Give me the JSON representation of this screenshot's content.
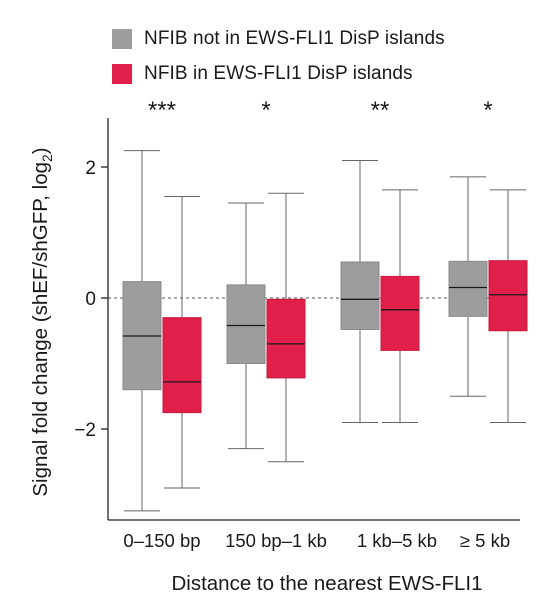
{
  "chart_data": {
    "type": "box",
    "legend_position": "top-left",
    "ylabel_main": "Signal fold change (shEF/shGFP, log",
    "ylabel_sub": "2",
    "ylabel_close": ")",
    "xlabel": "Distance to the nearest EWS-FLI1",
    "yticks": [
      2,
      0,
      -2
    ],
    "ylim": [
      -3.4,
      2.8
    ],
    "reference_line": 0,
    "categories": [
      "0–150 bp",
      "150 bp–1 kb",
      "1 kb–5 kb",
      "≥ 5 kb"
    ],
    "significance": [
      "***",
      "*",
      "**",
      "*"
    ],
    "series": [
      {
        "name": "NFIB not in EWS-FLI1 DisP islands",
        "color": "#9d9d9d",
        "boxes": [
          {
            "whisker_low": -3.25,
            "q1": -1.4,
            "median": -0.58,
            "q3": 0.25,
            "whisker_high": 2.25
          },
          {
            "whisker_low": -2.3,
            "q1": -1.0,
            "median": -0.42,
            "q3": 0.2,
            "whisker_high": 1.45
          },
          {
            "whisker_low": -1.9,
            "q1": -0.48,
            "median": -0.02,
            "q3": 0.55,
            "whisker_high": 2.1
          },
          {
            "whisker_low": -1.5,
            "q1": -0.28,
            "median": 0.16,
            "q3": 0.56,
            "whisker_high": 1.85
          }
        ]
      },
      {
        "name": "NFIB in EWS-FLI1 DisP islands",
        "color": "#e0204a",
        "boxes": [
          {
            "whisker_low": -2.9,
            "q1": -1.75,
            "median": -1.28,
            "q3": -0.3,
            "whisker_high": 1.55
          },
          {
            "whisker_low": -2.5,
            "q1": -1.22,
            "median": -0.7,
            "q3": -0.02,
            "whisker_high": 1.6
          },
          {
            "whisker_low": -1.9,
            "q1": -0.8,
            "median": -0.18,
            "q3": 0.33,
            "whisker_high": 1.65
          },
          {
            "whisker_low": -1.9,
            "q1": -0.5,
            "median": 0.05,
            "q3": 0.57,
            "whisker_high": 1.65
          }
        ]
      }
    ]
  }
}
